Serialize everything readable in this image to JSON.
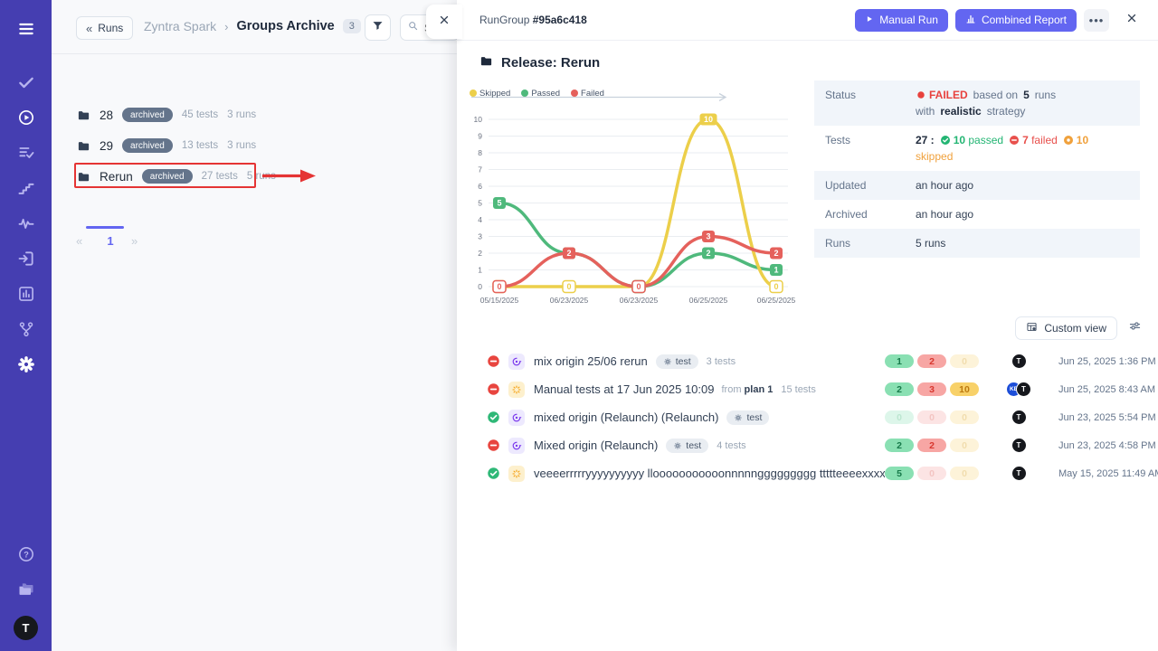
{
  "colors": {
    "sidebar_bg": "#453eb1",
    "sidebar_icon": "#b7b4ef",
    "sidebar_icon_active": "#ffffff",
    "accent": "#6366f1",
    "annotation": "#e53434",
    "row_alt_bg": "#f1f5fa",
    "passed": "#4fb97c",
    "failed": "#e5615c",
    "skipped": "#eccf4a"
  },
  "sidebar": {
    "nav": [
      {
        "name": "menu-icon",
        "key": "menu",
        "active": true
      },
      {
        "name": "check-icon",
        "key": "check",
        "active": false
      },
      {
        "name": "play-circle-icon",
        "key": "play-circle",
        "active": true
      },
      {
        "name": "list-check-icon",
        "key": "list-check",
        "active": false
      },
      {
        "name": "steps-icon",
        "key": "steps",
        "active": false
      },
      {
        "name": "activity-icon",
        "key": "activity",
        "active": false
      },
      {
        "name": "sign-in-icon",
        "key": "sign-in",
        "active": false
      },
      {
        "name": "report-icon",
        "key": "report",
        "active": false
      },
      {
        "name": "branch-icon",
        "key": "branch",
        "active": false
      },
      {
        "name": "gear-icon",
        "key": "gear",
        "active": true
      }
    ],
    "bottom": [
      {
        "name": "help-icon",
        "key": "help"
      },
      {
        "name": "folders-icon",
        "key": "folders"
      }
    ],
    "avatar": "T"
  },
  "left_panel": {
    "back_glyph": "«",
    "back_label": "Runs",
    "breadcrumb": {
      "parent": "Zyntra Spark",
      "sep": "›",
      "current": "Groups Archive",
      "count": "3"
    },
    "search_placeholder": "Search",
    "groups": [
      {
        "name": "28",
        "badge": "archived",
        "tests": "45 tests",
        "runs": "3 runs",
        "highlighted": false
      },
      {
        "name": "29",
        "badge": "archived",
        "tests": "13 tests",
        "runs": "3 runs",
        "highlighted": false
      },
      {
        "name": "Rerun",
        "badge": "archived",
        "tests": "27 tests",
        "runs": "5 runs",
        "highlighted": true
      }
    ],
    "pagination": {
      "prev": "«",
      "page": "1",
      "next": "»"
    }
  },
  "drawer": {
    "header": {
      "title_prefix": "RunGroup",
      "title_id": "#95a6c418",
      "manual_run": "Manual Run",
      "combined_report": "Combined Report"
    },
    "group_title": "Release: Rerun",
    "details": {
      "rows": [
        {
          "label": "Status",
          "segments": [
            {
              "icon": "circle",
              "text": "FAILED",
              "cls": "failed"
            },
            {
              "text": "based on",
              "cls": "plain"
            },
            {
              "text": "5",
              "cls": "strong"
            },
            {
              "text": "runs with",
              "cls": "plain"
            },
            {
              "text": "realistic",
              "cls": "strong"
            },
            {
              "text": "strategy",
              "cls": "plain"
            }
          ]
        },
        {
          "label": "Tests",
          "segments": [
            {
              "text": "27 :",
              "cls": "strong"
            },
            {
              "icon": "check-circle",
              "num": "10",
              "text": "passed",
              "cls": "green"
            },
            {
              "icon": "minus-circle",
              "num": "7",
              "text": "failed",
              "cls": "red"
            },
            {
              "icon": "dot-circle",
              "num": "10",
              "text": "skipped",
              "cls": "orange"
            }
          ]
        },
        {
          "label": "Updated",
          "segments": [
            {
              "text": "an hour ago",
              "cls": "dark"
            }
          ]
        },
        {
          "label": "Archived",
          "segments": [
            {
              "text": "an hour ago",
              "cls": "dark"
            }
          ]
        },
        {
          "label": "Runs",
          "segments": [
            {
              "text": "5 runs",
              "cls": "dark"
            }
          ]
        }
      ]
    },
    "custom_view": "Custom view",
    "runs": [
      {
        "status": "failed",
        "kind": "mixed",
        "title": "mix origin 25/06 rerun",
        "tag": "test",
        "tests_count": "3 tests",
        "pills": [
          {
            "value": "1",
            "kind": "pass",
            "solid": true
          },
          {
            "value": "2",
            "kind": "fail",
            "solid": true
          },
          {
            "value": "0",
            "kind": "skip",
            "solid": false
          }
        ],
        "avatars": [
          {
            "initials": "T",
            "bg": "#16181d"
          }
        ],
        "time": "Jun 25, 2025 1:36 PM"
      },
      {
        "status": "failed",
        "kind": "manual",
        "title": "Manual tests at 17 Jun 2025 10:09",
        "from_prefix": "from",
        "from_plan": "plan 1",
        "tests_count": "15 tests",
        "pills": [
          {
            "value": "2",
            "kind": "pass",
            "solid": true
          },
          {
            "value": "3",
            "kind": "fail",
            "solid": true
          },
          {
            "value": "10",
            "kind": "skip",
            "solid": true
          }
        ],
        "avatars": [
          {
            "initials": "KE",
            "bg": "#1d4ed8"
          },
          {
            "initials": "T",
            "bg": "#16181d"
          }
        ],
        "time": "Jun 25, 2025 8:43 AM"
      },
      {
        "status": "passed",
        "kind": "mixed",
        "title": "mixed origin (Relaunch) (Relaunch)",
        "tag": "test",
        "pills": [
          {
            "value": "0",
            "kind": "pass",
            "solid": false
          },
          {
            "value": "0",
            "kind": "fail",
            "solid": false
          },
          {
            "value": "0",
            "kind": "skip",
            "solid": false
          }
        ],
        "avatars": [
          {
            "initials": "T",
            "bg": "#16181d"
          }
        ],
        "time": "Jun 23, 2025 5:54 PM"
      },
      {
        "status": "failed",
        "kind": "mixed",
        "title": "Mixed origin (Relaunch)",
        "tag": "test",
        "tests_count": "4 tests",
        "pills": [
          {
            "value": "2",
            "kind": "pass",
            "solid": true
          },
          {
            "value": "2",
            "kind": "fail",
            "solid": true
          },
          {
            "value": "0",
            "kind": "skip",
            "solid": false
          }
        ],
        "avatars": [
          {
            "initials": "T",
            "bg": "#16181d"
          }
        ],
        "time": "Jun 23, 2025 4:58 PM"
      },
      {
        "status": "passed",
        "kind": "manual",
        "title": "veeeerrrrryyyyyyyyyy llooooooooooonnnnnggggggggg ttttteeeexxxxx",
        "pills": [
          {
            "value": "5",
            "kind": "pass",
            "solid": true
          },
          {
            "value": "0",
            "kind": "fail",
            "solid": false
          },
          {
            "value": "0",
            "kind": "skip",
            "solid": false
          }
        ],
        "avatars": [
          {
            "initials": "T",
            "bg": "#16181d"
          }
        ],
        "time": "May 15, 2025 11:49 AM"
      }
    ]
  },
  "chart_data": {
    "type": "line",
    "title": "",
    "x": [
      "05/15/2025",
      "06/23/2025",
      "06/23/2025",
      "06/25/2025",
      "06/25/2025"
    ],
    "series": [
      {
        "name": "Skipped",
        "color": "#eccf4a",
        "values": [
          0,
          0,
          0,
          10,
          0
        ]
      },
      {
        "name": "Passed",
        "color": "#4fb97c",
        "values": [
          5,
          2,
          0,
          2,
          1
        ]
      },
      {
        "name": "Failed",
        "color": "#e5615c",
        "values": [
          0,
          2,
          0,
          3,
          2
        ]
      }
    ],
    "ylim": [
      0,
      10
    ],
    "yticks": [
      0,
      1,
      2,
      3,
      4,
      5,
      6,
      7,
      8,
      9,
      10
    ],
    "grid": true,
    "legend_position": "top-left",
    "point_labels": true
  }
}
